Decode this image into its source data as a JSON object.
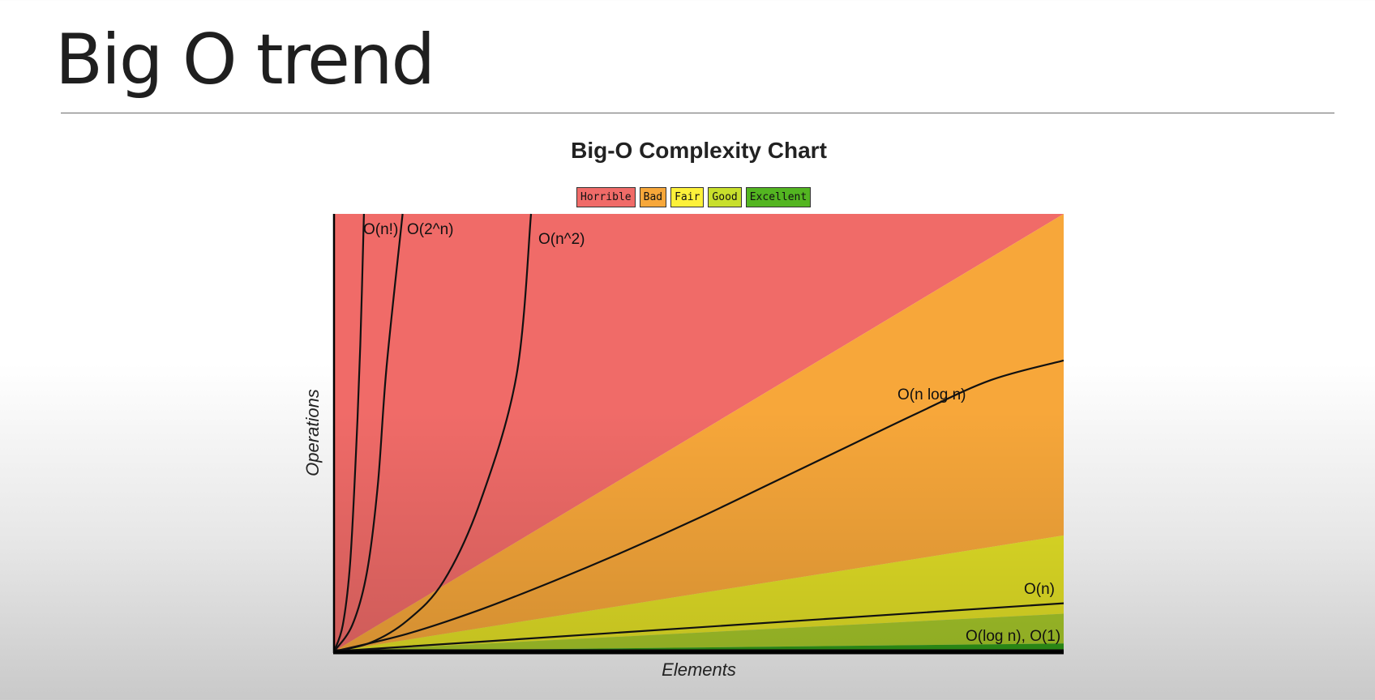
{
  "slide": {
    "title": "Big O trend"
  },
  "chart_data": {
    "type": "area",
    "title": "Big-O Complexity Chart",
    "xlabel": "Elements",
    "ylabel": "Operations",
    "legend": [
      {
        "name": "Horrible",
        "color": "#f06b68"
      },
      {
        "name": "Bad",
        "color": "#f7a73a"
      },
      {
        "name": "Fair",
        "color": "#fdf13a"
      },
      {
        "name": "Good",
        "color": "#c8df2c"
      },
      {
        "name": "Excellent",
        "color": "#53b521"
      }
    ],
    "legend_placement": "top-center",
    "xlim": [
      0,
      100
    ],
    "ylim": [
      0,
      100
    ],
    "grid": false,
    "regions": [
      {
        "name": "Horrible",
        "color": "#f06b68",
        "lower_right_y": 100
      },
      {
        "name": "Bad",
        "color": "#f7a73a",
        "lower_right_y": 26.5
      },
      {
        "name": "Fair",
        "color": "#e3e026",
        "lower_right_y": 8.6
      },
      {
        "name": "Good",
        "color": "#a7c82a",
        "lower_right_y": 1.8
      },
      {
        "name": "Excellent",
        "color": "#2f9a18",
        "lower_right_y": 0
      }
    ],
    "curves": [
      {
        "label": "O(n!)",
        "points": [
          [
            0,
            0
          ],
          [
            1.2,
            6
          ],
          [
            2.2,
            20
          ],
          [
            3.0,
            45
          ],
          [
            3.6,
            70
          ],
          [
            4.1,
            100
          ]
        ]
      },
      {
        "label": "O(2^n)",
        "points": [
          [
            0,
            0
          ],
          [
            2.5,
            6
          ],
          [
            4.5,
            18
          ],
          [
            6.0,
            38
          ],
          [
            7.2,
            65
          ],
          [
            9.4,
            100
          ]
        ]
      },
      {
        "label": "O(n^2)",
        "points": [
          [
            0,
            0
          ],
          [
            5,
            2
          ],
          [
            10,
            7
          ],
          [
            15,
            16
          ],
          [
            20,
            34
          ],
          [
            25,
            63
          ],
          [
            27,
            100
          ]
        ]
      },
      {
        "label": "O(n log n)",
        "points": [
          [
            0,
            0
          ],
          [
            10,
            4
          ],
          [
            20,
            9.5
          ],
          [
            30,
            16
          ],
          [
            40,
            23
          ],
          [
            50,
            30.5
          ],
          [
            60,
            38.5
          ],
          [
            70,
            46.5
          ],
          [
            80,
            54.5
          ],
          [
            90,
            62
          ],
          [
            100,
            66.5
          ]
        ]
      },
      {
        "label": "O(n)",
        "points": [
          [
            0,
            0
          ],
          [
            100,
            11
          ]
        ]
      },
      {
        "label": "O(log n), O(1)",
        "points": [
          [
            0,
            0.2
          ],
          [
            100,
            0.2
          ]
        ]
      }
    ]
  }
}
